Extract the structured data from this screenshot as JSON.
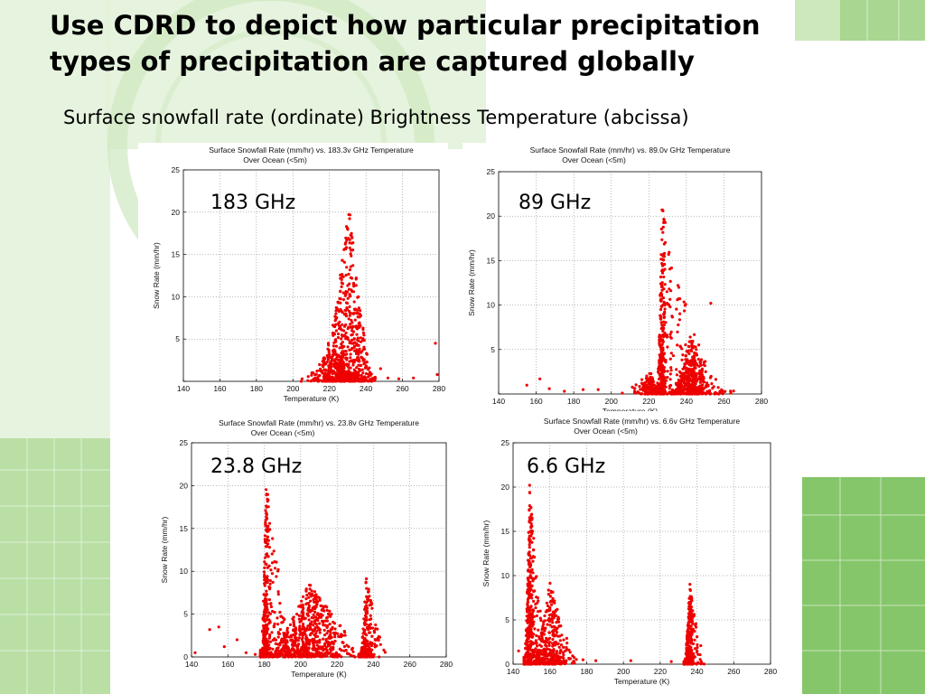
{
  "slide": {
    "title_line1": "Use CDRD to depict how particular precipitation",
    "title_line2": "types of precipitation are captured globally",
    "subtitle": "Surface snowfall rate (ordinate) Brightness Temperature (abcissa)"
  },
  "colors": {
    "points": "#ee0000",
    "background_green_light": "#dcefd2",
    "background_green_mid": "#a6d68e",
    "background_green_dark": "#7cc05e"
  },
  "chart_data": [
    {
      "type": "scatter",
      "label": "183 GHz",
      "title": "Surface Snowfall Rate (mm/hr) vs. 183.3v GHz Temperature",
      "subtitle": "Over Ocean (<5m)",
      "xlabel": "Temperature (K)",
      "ylabel": "Snow Rate (mm/hr)",
      "xlim": [
        140,
        280
      ],
      "ylim": [
        0,
        25
      ],
      "xticks": [
        "140",
        "160",
        "180",
        "200",
        "220",
        "240",
        "260",
        "280"
      ],
      "yticks": [
        "",
        "5",
        "10",
        "15",
        "20",
        "25"
      ],
      "grid": true,
      "clusters": [
        {
          "x_min": 212,
          "x_peak": 231,
          "x_max": 245,
          "y_max": 21.3,
          "n": 520
        },
        {
          "x_min": 202,
          "x_peak": 222,
          "x_max": 238,
          "y_max": 4.5,
          "n": 260
        }
      ],
      "outliers": [
        {
          "x": 205,
          "y": 0.3
        },
        {
          "x": 248,
          "y": 1.5
        },
        {
          "x": 252,
          "y": 0.4
        },
        {
          "x": 258,
          "y": 0.3
        },
        {
          "x": 266,
          "y": 0.4
        },
        {
          "x": 278,
          "y": 4.5
        },
        {
          "x": 279,
          "y": 0.8
        }
      ]
    },
    {
      "type": "scatter",
      "label": "89 GHz",
      "title": "Surface Snowfall Rate (mm/hr) vs. 89.0v GHz Temperature",
      "subtitle": "Over Ocean (<5m)",
      "xlabel": "Temperature (K)",
      "ylabel": "Snow Rate (mm/hr)",
      "xlim": [
        140,
        280
      ],
      "ylim": [
        0,
        25
      ],
      "xticks": [
        "140",
        "160",
        "180",
        "200",
        "220",
        "240",
        "260",
        "280"
      ],
      "yticks": [
        "",
        "5",
        "10",
        "15",
        "20",
        "25"
      ],
      "grid": true,
      "clusters": [
        {
          "x_min": 224,
          "x_peak": 227,
          "x_max": 262,
          "y_max": 21.2,
          "n": 520
        },
        {
          "x_min": 232,
          "x_peak": 242,
          "x_max": 270,
          "y_max": 6.5,
          "n": 420
        },
        {
          "x_min": 200,
          "x_peak": 221,
          "x_max": 226,
          "y_max": 2.5,
          "n": 140
        }
      ],
      "outliers": [
        {
          "x": 155,
          "y": 1.0
        },
        {
          "x": 162,
          "y": 1.7
        },
        {
          "x": 167,
          "y": 0.6
        },
        {
          "x": 175,
          "y": 0.3
        },
        {
          "x": 185,
          "y": 0.5
        },
        {
          "x": 193,
          "y": 0.5
        },
        {
          "x": 253,
          "y": 10.2
        }
      ]
    },
    {
      "type": "scatter",
      "label": "23.8 GHz",
      "title": "Surface Snowfall Rate (mm/hr) vs. 23.8v GHz Temperature",
      "subtitle": "Over Ocean (<5m)",
      "xlabel": "Temperature (K)",
      "ylabel": "Snow Rate (mm/hr)",
      "xlim": [
        140,
        280
      ],
      "ylim": [
        0,
        25
      ],
      "xticks": [
        "140",
        "160",
        "180",
        "200",
        "220",
        "240",
        "260",
        "280"
      ],
      "yticks": [
        "0",
        "5",
        "10",
        "15",
        "20",
        "25"
      ],
      "grid": true,
      "clusters": [
        {
          "x_min": 178,
          "x_peak": 181,
          "x_max": 200,
          "y_max": 20.5,
          "n": 420
        },
        {
          "x_min": 178,
          "x_peak": 205,
          "x_max": 245,
          "y_max": 9.0,
          "n": 650
        },
        {
          "x_min": 232,
          "x_peak": 236,
          "x_max": 250,
          "y_max": 9.3,
          "n": 220
        }
      ],
      "outliers": [
        {
          "x": 142,
          "y": 0.5
        },
        {
          "x": 150,
          "y": 3.2
        },
        {
          "x": 155,
          "y": 3.5
        },
        {
          "x": 158,
          "y": 1.2
        },
        {
          "x": 165,
          "y": 2.0
        },
        {
          "x": 170,
          "y": 0.5
        },
        {
          "x": 175,
          "y": 0.3
        }
      ]
    },
    {
      "type": "scatter",
      "label": "6.6 GHz",
      "title": "Surface Snowfall Rate (mm/hr) vs. 6.6v GHz Temperature",
      "subtitle": "Over Ocean (<5m)",
      "xlabel": "Temperature (K)",
      "ylabel": "Snow Rate (mm/hr)",
      "xlim": [
        140,
        280
      ],
      "ylim": [
        0,
        25
      ],
      "xticks": [
        "140",
        "160",
        "180",
        "200",
        "220",
        "240",
        "260",
        "280"
      ],
      "yticks": [
        "0",
        "5",
        "10",
        "15",
        "20",
        "25"
      ],
      "grid": true,
      "clusters": [
        {
          "x_min": 146,
          "x_peak": 149,
          "x_max": 160,
          "y_max": 20.5,
          "n": 480
        },
        {
          "x_min": 150,
          "x_peak": 160,
          "x_max": 178,
          "y_max": 9.5,
          "n": 330
        },
        {
          "x_min": 233,
          "x_peak": 236,
          "x_max": 246,
          "y_max": 9.3,
          "n": 300
        }
      ],
      "outliers": [
        {
          "x": 143,
          "y": 1.5
        },
        {
          "x": 178,
          "y": 0.5
        },
        {
          "x": 185,
          "y": 0.4
        },
        {
          "x": 204,
          "y": 0.4
        },
        {
          "x": 226,
          "y": 0.3
        }
      ]
    }
  ]
}
